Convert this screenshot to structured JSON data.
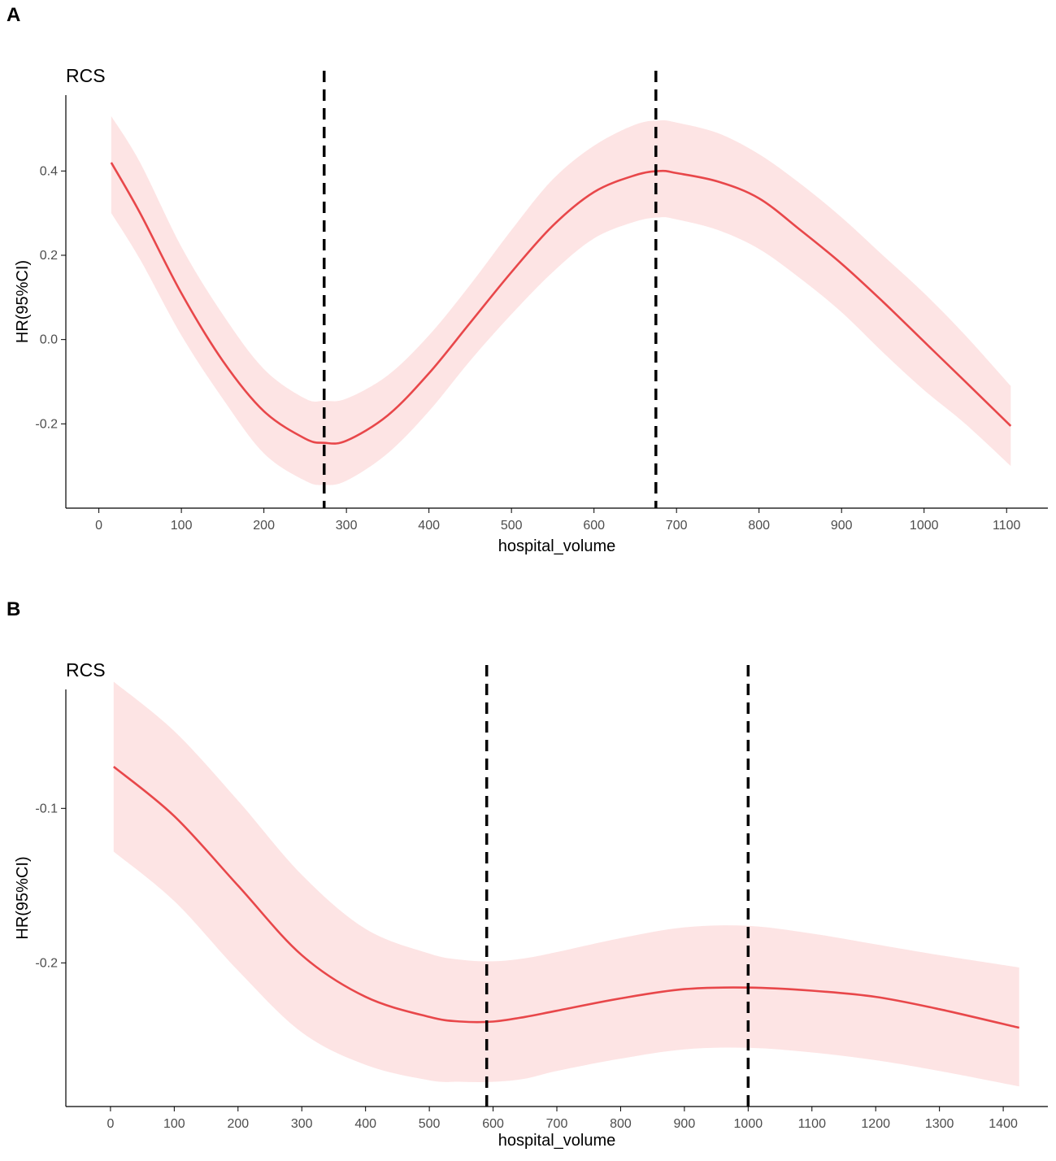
{
  "panels": [
    {
      "label": "A"
    },
    {
      "label": "B"
    }
  ],
  "colors": {
    "line": "#e8474a",
    "band": "#fde4e4",
    "vline": "#000000",
    "axis": "#000000",
    "tick_text": "#4d4d4d"
  },
  "chart_data": [
    {
      "type": "line",
      "panel": "A",
      "title": "RCS",
      "xlabel": "hospital_volume",
      "ylabel": "HR(95%CI)",
      "xlim": [
        -40,
        1150
      ],
      "ylim": [
        -0.4,
        0.58
      ],
      "xticks": [
        0,
        100,
        200,
        300,
        400,
        500,
        600,
        700,
        800,
        900,
        1000,
        1100
      ],
      "yticks": [
        -0.2,
        0.0,
        0.2,
        0.4
      ],
      "ytick_labels": [
        "-0.2",
        "0.0",
        "0.2",
        "0.4"
      ],
      "vlines": [
        273,
        675
      ],
      "series": [
        {
          "name": "HR",
          "x": [
            15,
            50,
            100,
            150,
            200,
            250,
            273,
            300,
            350,
            400,
            450,
            500,
            550,
            600,
            650,
            680,
            700,
            750,
            800,
            850,
            900,
            950,
            1000,
            1050,
            1105
          ],
          "y": [
            0.42,
            0.3,
            0.11,
            -0.05,
            -0.17,
            -0.235,
            -0.245,
            -0.24,
            -0.18,
            -0.08,
            0.04,
            0.16,
            0.27,
            0.35,
            0.39,
            0.4,
            0.395,
            0.375,
            0.335,
            0.26,
            0.18,
            0.09,
            -0.005,
            -0.1,
            -0.205
          ],
          "lower": [
            0.3,
            0.19,
            0.01,
            -0.14,
            -0.27,
            -0.335,
            -0.345,
            -0.335,
            -0.27,
            -0.17,
            -0.05,
            0.06,
            0.16,
            0.24,
            0.28,
            0.29,
            0.285,
            0.26,
            0.215,
            0.145,
            0.065,
            -0.03,
            -0.12,
            -0.2,
            -0.3
          ],
          "upper": [
            0.53,
            0.42,
            0.22,
            0.06,
            -0.07,
            -0.14,
            -0.145,
            -0.14,
            -0.085,
            0.01,
            0.13,
            0.26,
            0.38,
            0.46,
            0.51,
            0.52,
            0.515,
            0.49,
            0.44,
            0.37,
            0.29,
            0.2,
            0.11,
            0.01,
            -0.11
          ]
        }
      ]
    },
    {
      "type": "line",
      "panel": "B",
      "title": "RCS",
      "xlabel": "hospital_volume",
      "ylabel": "HR(95%CI)",
      "xlim": [
        -70,
        1470
      ],
      "ylim": [
        -0.293,
        -0.023
      ],
      "xticks": [
        0,
        100,
        200,
        300,
        400,
        500,
        600,
        700,
        800,
        900,
        1000,
        1100,
        1200,
        1300,
        1400
      ],
      "yticks": [
        -0.2,
        -0.1
      ],
      "ytick_labels": [
        "-0.2",
        "-0.1"
      ],
      "vlines": [
        590,
        1000
      ],
      "series": [
        {
          "name": "HR",
          "x": [
            5,
            100,
            200,
            300,
            400,
            500,
            550,
            600,
            650,
            700,
            800,
            900,
            1000,
            1100,
            1200,
            1300,
            1425
          ],
          "y": [
            -0.073,
            -0.105,
            -0.15,
            -0.195,
            -0.222,
            -0.235,
            -0.238,
            -0.238,
            -0.235,
            -0.231,
            -0.223,
            -0.217,
            -0.216,
            -0.218,
            -0.222,
            -0.23,
            -0.242
          ],
          "lower": [
            -0.128,
            -0.16,
            -0.205,
            -0.245,
            -0.266,
            -0.276,
            -0.277,
            -0.277,
            -0.275,
            -0.27,
            -0.262,
            -0.256,
            -0.255,
            -0.258,
            -0.263,
            -0.27,
            -0.28
          ],
          "upper": [
            -0.018,
            -0.05,
            -0.095,
            -0.143,
            -0.178,
            -0.194,
            -0.198,
            -0.199,
            -0.197,
            -0.193,
            -0.184,
            -0.177,
            -0.176,
            -0.181,
            -0.188,
            -0.195,
            -0.203
          ]
        }
      ]
    }
  ]
}
